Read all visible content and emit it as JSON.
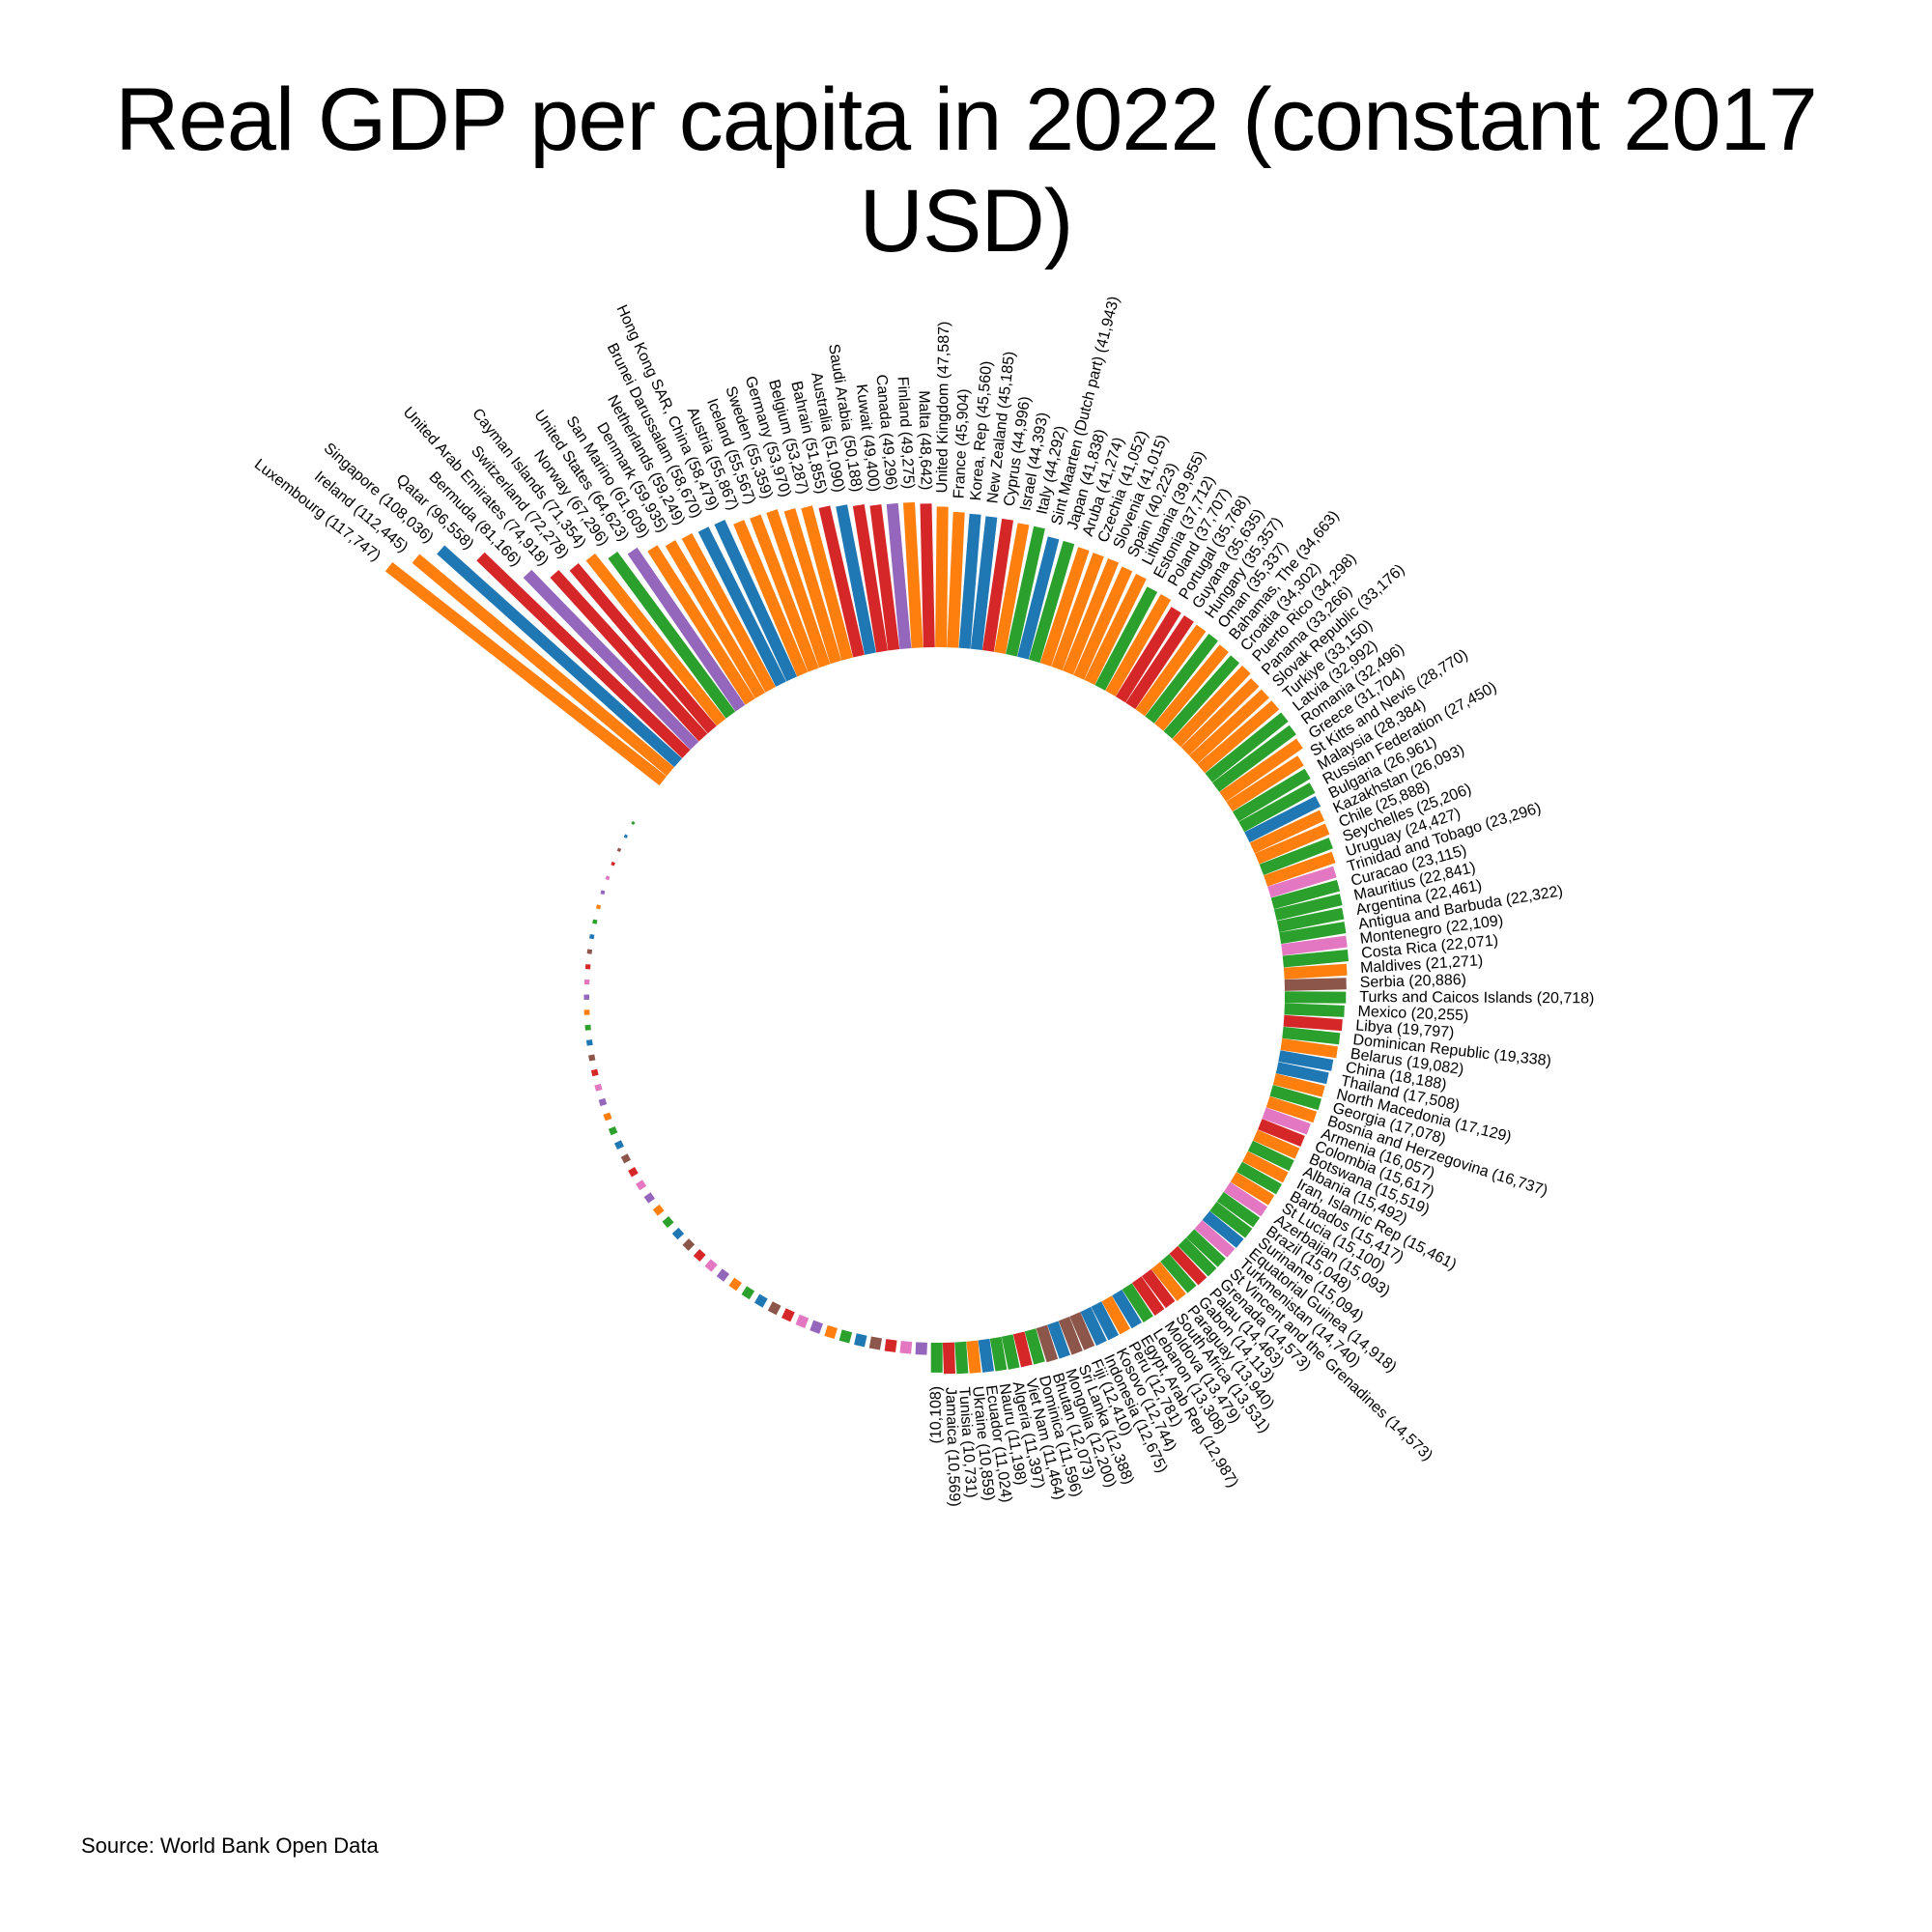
{
  "title": "Real GDP per capita in 2022 (constant 2017 USD)",
  "source": "Source: World Bank Open Data",
  "chart_data": {
    "type": "bar",
    "layout": "radial",
    "title": "Real GDP per capita in 2022 (constant 2017 USD)",
    "palette": [
      "#ff7f0e",
      "#1f77b4",
      "#d62728",
      "#9467bd",
      "#2ca02c",
      "#8c564b",
      "#e377c2"
    ],
    "categories": [
      "Luxembourg (117,747)",
      "Ireland (112,445)",
      "Singapore (108,036)",
      "Qatar (96,558)",
      "Bermuda (81,166)",
      "United Arab Emirates (74,918)",
      "Switzerland (72,278)",
      "Cayman Islands (71,354)",
      "Norway (67,296)",
      "United States (64,623)",
      "San Marino (61,609)",
      "Denmark (59,935)",
      "Netherlands (59,249)",
      "Brunei Darussalam (58,670)",
      "Hong Kong SAR, China (58,479)",
      "Austria (55,867)",
      "Iceland (55,567)",
      "Sweden (55,359)",
      "Germany (53,970)",
      "Belgium (53,287)",
      "Bahrain (51,855)",
      "Australia (51,090)",
      "Saudi Arabia (50,188)",
      "Kuwait (49,400)",
      "Canada (49,296)",
      "Finland (49,275)",
      "Malta (48,642)",
      "United Kingdom (47,587)",
      "France (45,904)",
      "Korea, Rep (45,560)",
      "New Zealand (45,185)",
      "Cyprus (44,996)",
      "Israel (44,393)",
      "Italy (44,292)",
      "Sint Maarten (Dutch part) (41,943)",
      "Japan (41,838)",
      "Aruba (41,274)",
      "Czechia (41,052)",
      "Slovenia (41,015)",
      "Spain (40,223)",
      "Lithuania (39,955)",
      "Estonia (37,712)",
      "Poland (37,707)",
      "Portugal (35,768)",
      "Guyana (35,635)",
      "Hungary (35,357)",
      "Oman (35,337)",
      "Bahamas, The (34,663)",
      "Croatia (34,302)",
      "Puerto Rico (34,298)",
      "Panama (33,266)",
      "Slovak Republic (33,176)",
      "Turkiye (33,150)",
      "Latvia (32,992)",
      "Romania (32,496)",
      "Greece (31,704)",
      "St Kitts and Nevis (28,770)",
      "Malaysia (28,384)",
      "Russian Federation (27,450)",
      "Bulgaria (26,961)",
      "Kazakhstan (26,093)",
      "Chile (25,888)",
      "Seychelles (25,206)",
      "Uruguay (24,427)",
      "Trinidad and Tobago (23,296)",
      "Curacao (23,115)",
      "Mauritius (22,841)",
      "Argentina (22,461)",
      "Antigua and Barbuda (22,322)",
      "Montenegro (22,109)",
      "Costa Rica (22,071)",
      "Maldives (21,271)",
      "Serbia (20,886)",
      "Turks and Caicos Islands (20,718)",
      "Mexico (20,255)",
      "Libya (19,797)",
      "Dominican Republic (19,338)",
      "Belarus (19,082)",
      "China (18,188)",
      "Thailand (17,508)",
      "North Macedonia (17,129)",
      "Georgia (17,078)",
      "Bosnia and Herzegovina (16,737)",
      "Armenia (16,057)",
      "Colombia (15,617)",
      "Botswana (15,519)",
      "Albania (15,492)",
      "Iran, Islamic Rep (15,461)",
      "Barbados (15,417)",
      "St Lucia (15,100)",
      "Azerbaijan (15,093)",
      "Brazil (15,048)",
      "Suriname (15,094)",
      "Equatorial Guinea (14,918)",
      "Turkmenistan (14,740)",
      "St Vincent and the Grenadines (14,573)",
      "Grenada (14,573)",
      "Palau (14,463)",
      "Gabon (14,113)",
      "Paraguay (13,940)",
      "South Africa (13,531)",
      "Moldova (13,479)",
      "Lebanon (13,308)",
      "Egypt, Arab Rep (12,987)",
      "Peru (12,781)",
      "Kosovo (12,744)",
      "Indonesia (12,675)",
      "Fiji (12,410)",
      "Sri Lanka (12,388)",
      "Mongolia (12,200)",
      "Bhutan (12,073)",
      "Dominica (11,596)",
      "Viet Nam (11,464)",
      "Algeria (11,397)",
      "Nauru (11,198)",
      "Ecuador (11,024)",
      "Ukraine (10,859)",
      "Tunisia (10,731)",
      "Jamaica (10,569)",
      "(10,108)"
    ],
    "values": [
      117747,
      112445,
      108036,
      96558,
      81166,
      74918,
      72278,
      71354,
      67296,
      64623,
      61609,
      59935,
      59249,
      58670,
      58479,
      55867,
      55567,
      55359,
      53970,
      53287,
      51855,
      51090,
      50188,
      49400,
      49296,
      49275,
      48642,
      47587,
      45904,
      45560,
      45185,
      44996,
      44393,
      44292,
      41943,
      41838,
      41274,
      41052,
      41015,
      40223,
      39955,
      37712,
      37707,
      35768,
      35635,
      35357,
      35337,
      34663,
      34302,
      34298,
      33266,
      33176,
      33150,
      32992,
      32496,
      31704,
      28770,
      28384,
      27450,
      26961,
      26093,
      25888,
      25206,
      24427,
      23296,
      23115,
      22841,
      22461,
      22322,
      22109,
      22071,
      21271,
      20886,
      20718,
      20255,
      19797,
      19338,
      19082,
      18188,
      17508,
      17129,
      17078,
      16737,
      16057,
      15617,
      15519,
      15492,
      15461,
      15417,
      15100,
      15093,
      15048,
      15094,
      14918,
      14740,
      14573,
      14573,
      14463,
      14113,
      13940,
      13531,
      13479,
      13308,
      12987,
      12781,
      12744,
      12675,
      12410,
      12388,
      12200,
      12073,
      11596,
      11464,
      11397,
      11198,
      11024,
      10859,
      10731,
      10569,
      10108
    ],
    "colors": [
      0,
      0,
      1,
      2,
      3,
      2,
      2,
      0,
      4,
      3,
      0,
      0,
      0,
      1,
      1,
      0,
      0,
      0,
      0,
      0,
      2,
      1,
      2,
      2,
      3,
      0,
      2,
      0,
      0,
      1,
      1,
      2,
      0,
      4,
      1,
      4,
      0,
      0,
      0,
      0,
      0,
      4,
      0,
      2,
      2,
      0,
      4,
      0,
      4,
      0,
      0,
      0,
      0,
      4,
      4,
      0,
      0,
      4,
      4,
      1,
      0,
      0,
      4,
      0,
      6,
      4,
      4,
      4,
      4,
      6,
      4,
      0,
      5,
      4,
      4,
      2,
      4,
      0,
      1,
      1,
      0,
      4,
      0,
      6,
      2,
      0,
      4,
      0,
      4,
      0,
      6,
      4,
      4,
      1,
      6,
      4,
      4,
      2,
      4,
      0,
      2,
      2,
      4,
      1,
      0,
      1,
      1,
      5,
      5,
      1,
      5,
      4,
      2,
      4,
      4,
      1,
      0,
      4,
      2,
      4
    ],
    "tail_marks": 48,
    "ylim": [
      0,
      117747
    ]
  }
}
